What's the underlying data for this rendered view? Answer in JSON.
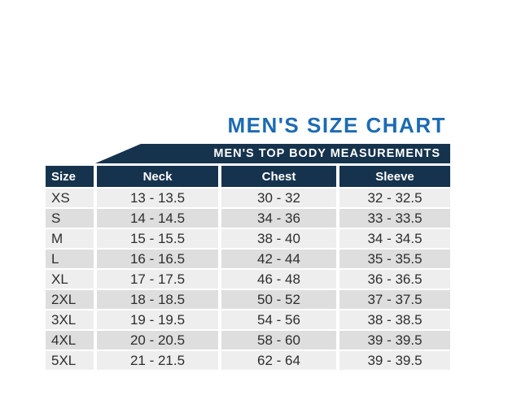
{
  "colors": {
    "navy": "#16334d",
    "title_blue": "#1c6bb2",
    "row_light": "#eeeeee",
    "row_dark": "#dedede",
    "cell_text": "#2e2e2e",
    "header_text": "#ffffff"
  },
  "chart_data": {
    "type": "table",
    "title": "MEN'S SIZE CHART",
    "subtitle": "MEN'S TOP BODY MEASUREMENTS",
    "columns": [
      "Size",
      "Neck",
      "Chest",
      "Sleeve"
    ],
    "rows": [
      [
        "XS",
        "13 - 13.5",
        "30 - 32",
        "32 - 32.5"
      ],
      [
        "S",
        "14 - 14.5",
        "34 - 36",
        "33 - 33.5"
      ],
      [
        "M",
        "15 - 15.5",
        "38 - 40",
        "34 - 34.5"
      ],
      [
        "L",
        "16 - 16.5",
        "42 - 44",
        "35 - 35.5"
      ],
      [
        "XL",
        "17 - 17.5",
        "46 - 48",
        "36 - 36.5"
      ],
      [
        "2XL",
        "18 - 18.5",
        "50 - 52",
        "37 - 37.5"
      ],
      [
        "3XL",
        "19 - 19.5",
        "54 - 56",
        "38 - 38.5"
      ],
      [
        "4XL",
        "20 - 20.5",
        "58 - 60",
        "39 - 39.5"
      ],
      [
        "5XL",
        "21 - 21.5",
        "62 - 64",
        "39 - 39.5"
      ]
    ]
  }
}
